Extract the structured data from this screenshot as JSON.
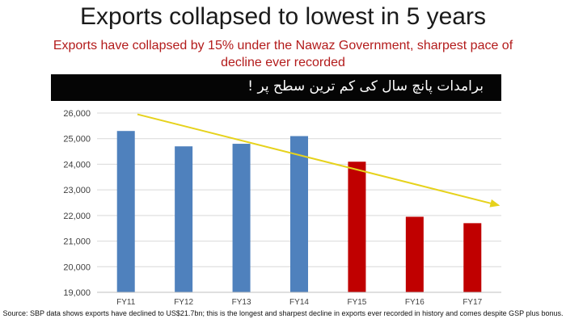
{
  "header": {
    "title": "Exports collapsed to lowest in 5 years",
    "subtitle": "Exports have collapsed by 15% under the Nawaz Government, sharpest pace of decline  ever recorded"
  },
  "banner": {
    "text": "برامدات پانچ سال کی کم ترین سطح پر !"
  },
  "chart_data": {
    "type": "bar",
    "categories": [
      "FY11",
      "FY12",
      "FY13",
      "FY14",
      "FY15",
      "FY16",
      "FY17"
    ],
    "values": [
      25300,
      24700,
      24800,
      25100,
      24100,
      21950,
      21700
    ],
    "bar_colors": [
      "#4f81bd",
      "#4f81bd",
      "#4f81bd",
      "#4f81bd",
      "#c00000",
      "#c00000",
      "#c00000"
    ],
    "ylim": [
      19000,
      26000
    ],
    "yticks": [
      "19,000",
      "20,000",
      "21,000",
      "22,000",
      "23,000",
      "24,000",
      "25,000",
      "26,000"
    ],
    "grid": true,
    "trend_arrow_color": "#e6d21c"
  },
  "footer": {
    "source": "Source: SBP data shows exports have declined to US$21.7bn; this is the longest and sharpest decline in exports ever recorded in history and comes despite GSP plus bonus."
  }
}
